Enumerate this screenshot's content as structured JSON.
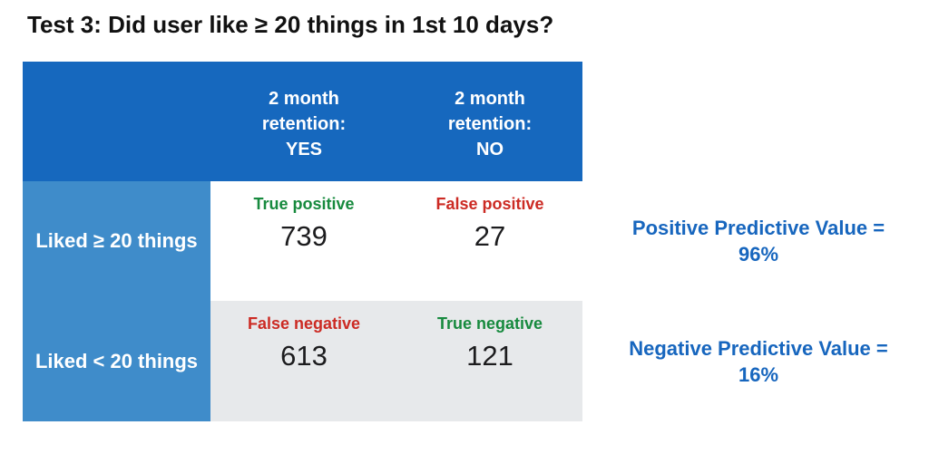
{
  "title": "Test 3: Did user like ≥ 20 things in 1st 10 days?",
  "colors": {
    "header_blue": "#1668BE",
    "row_label_blue": "#3F8CCA",
    "alt_row_gray": "#E7E9EB",
    "positive_green": "#178A3E",
    "negative_red": "#CC2B24",
    "annotation_blue": "#1766BE",
    "number_black": "#1c1c1e"
  },
  "table": {
    "header": {
      "col1": {
        "line1": "2 month",
        "line2": "retention:",
        "line3": "YES"
      },
      "col2": {
        "line1": "2 month",
        "line2": "retention:",
        "line3": "NO"
      }
    },
    "rows": [
      {
        "label": "Liked ≥ 20 things",
        "cells": [
          {
            "tag": "True positive",
            "tone": "green",
            "value": "739"
          },
          {
            "tag": "False positive",
            "tone": "red",
            "value": "27"
          }
        ]
      },
      {
        "label": "Liked < 20 things",
        "cells": [
          {
            "tag": "False negative",
            "tone": "red",
            "value": "613"
          },
          {
            "tag": "True negative",
            "tone": "green",
            "value": "121"
          }
        ]
      }
    ]
  },
  "annotations": {
    "ppv": {
      "line1": "Positive Predictive Value =",
      "line2": "96%"
    },
    "npv": {
      "line1": "Negative Predictive Value =",
      "line2": "16%"
    }
  },
  "chart_data": {
    "type": "table",
    "title": "Test 3: Did user like ≥ 20 things in 1st 10 days?",
    "columns": [
      "2 month retention: YES",
      "2 month retention: NO"
    ],
    "rows": [
      "Liked ≥ 20 things",
      "Liked < 20 things"
    ],
    "cells": [
      [
        {
          "label": "True positive",
          "value": 739
        },
        {
          "label": "False positive",
          "value": 27
        }
      ],
      [
        {
          "label": "False negative",
          "value": 613
        },
        {
          "label": "True negative",
          "value": 121
        }
      ]
    ],
    "derived_metrics": {
      "positive_predictive_value": "96%",
      "negative_predictive_value": "16%"
    },
    "layout_hints": {
      "header_fill": "#1668BE",
      "row_label_fill": "#3F8CCA",
      "row2_fill": "#E7E9EB",
      "annotations_position": "right"
    }
  }
}
